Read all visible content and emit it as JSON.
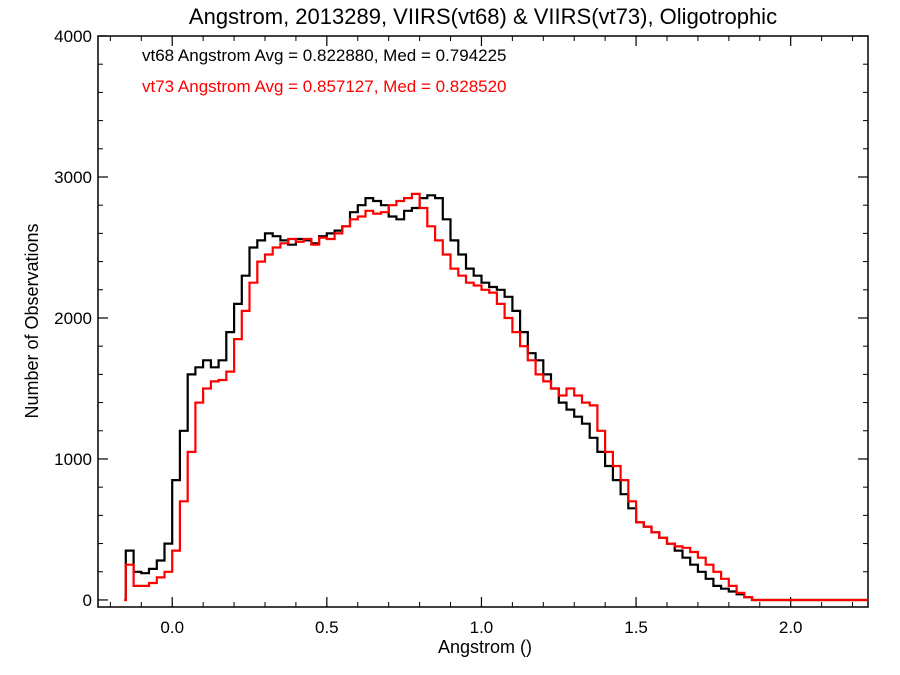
{
  "chart_data": {
    "type": "line",
    "title": "Angstrom, 2013289, VIIRS(vt68) & VIIRS(vt73), Oligotrophic",
    "xlabel": "Angstrom ()",
    "ylabel": "Number of Observations",
    "xlim": [
      -0.24,
      2.25
    ],
    "ylim": [
      -50,
      4000
    ],
    "xticks": [
      0.0,
      0.5,
      1.0,
      1.5,
      2.0
    ],
    "xtick_labels": [
      "0.0",
      "0.5",
      "1.0",
      "1.5",
      "2.0"
    ],
    "yticks": [
      0,
      1000,
      2000,
      3000,
      4000
    ],
    "ytick_labels": [
      "0",
      "1000",
      "2000",
      "3000",
      "4000"
    ],
    "grid": false,
    "step": true,
    "annotations": [
      {
        "text": "vt68 Angstrom Avg = 0.822880, Med = 0.794225",
        "color": "#000000"
      },
      {
        "text": "vt73 Angstrom Avg = 0.857127, Med = 0.828520",
        "color": "#ff0000"
      }
    ],
    "x": [
      -0.155,
      -0.15,
      -0.125,
      -0.1,
      -0.075,
      -0.05,
      -0.025,
      0.0,
      0.025,
      0.05,
      0.075,
      0.1,
      0.125,
      0.15,
      0.175,
      0.2,
      0.225,
      0.25,
      0.275,
      0.3,
      0.325,
      0.35,
      0.375,
      0.4,
      0.425,
      0.45,
      0.475,
      0.5,
      0.525,
      0.55,
      0.575,
      0.6,
      0.625,
      0.65,
      0.675,
      0.7,
      0.725,
      0.75,
      0.775,
      0.8,
      0.825,
      0.85,
      0.875,
      0.9,
      0.925,
      0.95,
      0.975,
      1.0,
      1.025,
      1.05,
      1.075,
      1.1,
      1.125,
      1.15,
      1.175,
      1.2,
      1.225,
      1.25,
      1.275,
      1.3,
      1.325,
      1.35,
      1.375,
      1.4,
      1.425,
      1.45,
      1.475,
      1.5,
      1.525,
      1.55,
      1.575,
      1.6,
      1.625,
      1.65,
      1.675,
      1.7,
      1.725,
      1.75,
      1.775,
      1.8,
      1.825,
      1.85,
      1.875,
      1.9,
      1.925,
      1.95,
      1.975,
      2.0,
      2.025,
      2.05,
      2.075,
      2.1,
      2.125,
      2.15
    ],
    "series": [
      {
        "name": "vt68",
        "color": "#000000",
        "values": [
          0,
          350,
          200,
          190,
          220,
          280,
          400,
          850,
          1200,
          1600,
          1650,
          1700,
          1650,
          1700,
          1900,
          2100,
          2300,
          2500,
          2550,
          2600,
          2580,
          2550,
          2520,
          2560,
          2550,
          2530,
          2580,
          2600,
          2620,
          2650,
          2750,
          2800,
          2850,
          2830,
          2800,
          2720,
          2700,
          2760,
          2780,
          2850,
          2870,
          2850,
          2700,
          2550,
          2450,
          2350,
          2300,
          2250,
          2220,
          2200,
          2150,
          2050,
          1900,
          1750,
          1700,
          1600,
          1500,
          1400,
          1350,
          1300,
          1250,
          1150,
          1050,
          950,
          850,
          750,
          650,
          550,
          520,
          480,
          440,
          400,
          350,
          300,
          250,
          200,
          150,
          100,
          80,
          60,
          40,
          20,
          0,
          0,
          0,
          0,
          0,
          0,
          0,
          0,
          0,
          0,
          0,
          0
        ]
      },
      {
        "name": "vt73",
        "color": "#ff0000",
        "values": [
          0,
          250,
          100,
          100,
          120,
          160,
          200,
          350,
          700,
          1050,
          1400,
          1500,
          1550,
          1560,
          1620,
          1850,
          2050,
          2250,
          2400,
          2450,
          2500,
          2530,
          2560,
          2540,
          2560,
          2520,
          2570,
          2560,
          2600,
          2650,
          2700,
          2720,
          2760,
          2740,
          2750,
          2800,
          2830,
          2850,
          2880,
          2780,
          2650,
          2550,
          2450,
          2350,
          2300,
          2250,
          2230,
          2200,
          2180,
          2100,
          2000,
          1900,
          1800,
          1700,
          1600,
          1550,
          1500,
          1450,
          1500,
          1450,
          1400,
          1380,
          1200,
          1050,
          950,
          850,
          700,
          550,
          520,
          480,
          440,
          400,
          380,
          370,
          340,
          300,
          250,
          200,
          150,
          100,
          50,
          20,
          0,
          0,
          0,
          0,
          0,
          0,
          0,
          0,
          0,
          0,
          0,
          0
        ]
      }
    ]
  }
}
